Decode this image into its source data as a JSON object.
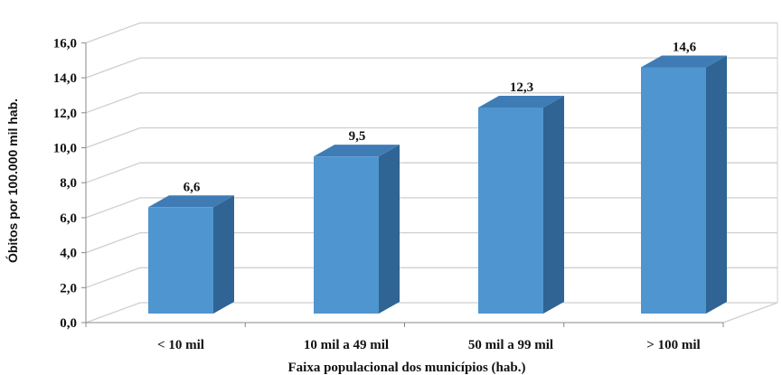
{
  "chart_data": {
    "type": "bar",
    "title": "",
    "categories": [
      "< 10 mil",
      "10 mil a 49 mil",
      "50 mil a 99 mil",
      "> 100 mil"
    ],
    "values": [
      6.6,
      9.5,
      12.3,
      14.6
    ],
    "value_labels": [
      "6,6",
      "9,5",
      "12,3",
      "14,6"
    ],
    "xlabel": "Faixa populacional dos municípios (hab.)",
    "ylabel": "Óbitos por 100.000 mil hab.",
    "ylim": [
      0,
      16
    ],
    "yticks": [
      "0,0",
      "2,0",
      "4,0",
      "6,0",
      "8,0",
      "10,0",
      "12,0",
      "14,0",
      "16,0"
    ],
    "grid": true,
    "style": "3d",
    "colors": {
      "bar_front": "#4f95d0",
      "bar_side": "#2f6494",
      "bar_top": "#3f7cb6",
      "grid": "#cfcfcf"
    }
  }
}
